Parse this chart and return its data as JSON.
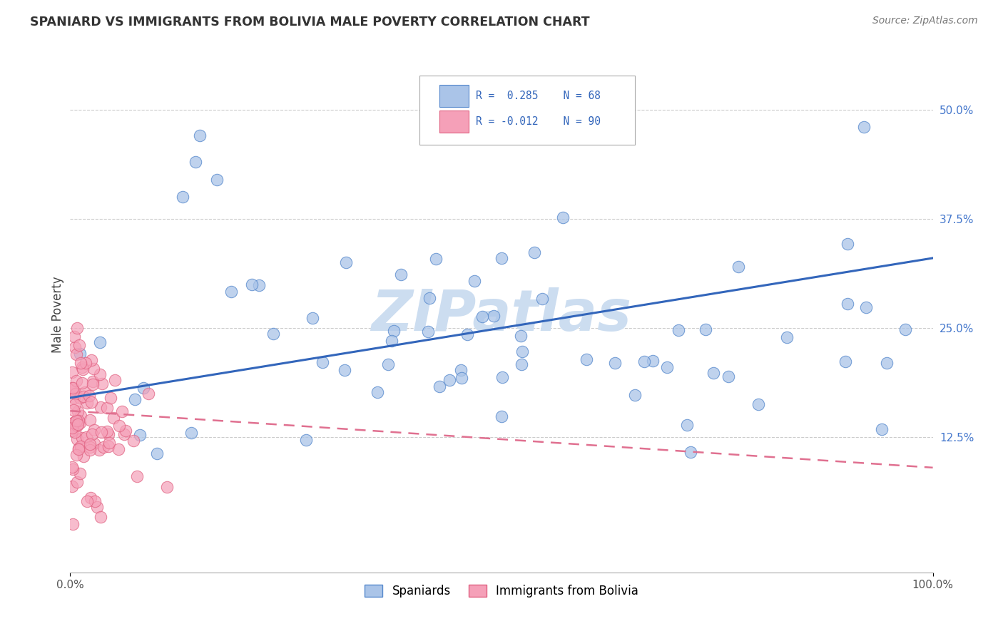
{
  "title": "SPANIARD VS IMMIGRANTS FROM BOLIVIA MALE POVERTY CORRELATION CHART",
  "source_text": "Source: ZipAtlas.com",
  "ylabel": "Male Poverty",
  "xlim": [
    0.0,
    1.0
  ],
  "ylim": [
    -0.03,
    0.56
  ],
  "yticks": [
    0.0,
    0.125,
    0.25,
    0.375,
    0.5
  ],
  "ytick_labels": [
    "",
    "12.5%",
    "25.0%",
    "37.5%",
    "50.0%"
  ],
  "spaniard_color": "#aac4e8",
  "bolivia_color": "#f5a0b8",
  "spaniard_edge_color": "#5588cc",
  "bolivia_edge_color": "#e06080",
  "spaniard_line_color": "#3366bb",
  "bolivia_line_color": "#e07090",
  "watermark": "ZIPatlas",
  "watermark_color": "#ccddf0",
  "background_color": "#ffffff",
  "grid_color": "#cccccc",
  "legend_r1": "R =  0.285",
  "legend_n1": "N = 68",
  "legend_r2": "R = -0.012",
  "legend_n2": "N = 90",
  "title_fontsize": 12.5,
  "source_fontsize": 10,
  "tick_fontsize": 11
}
